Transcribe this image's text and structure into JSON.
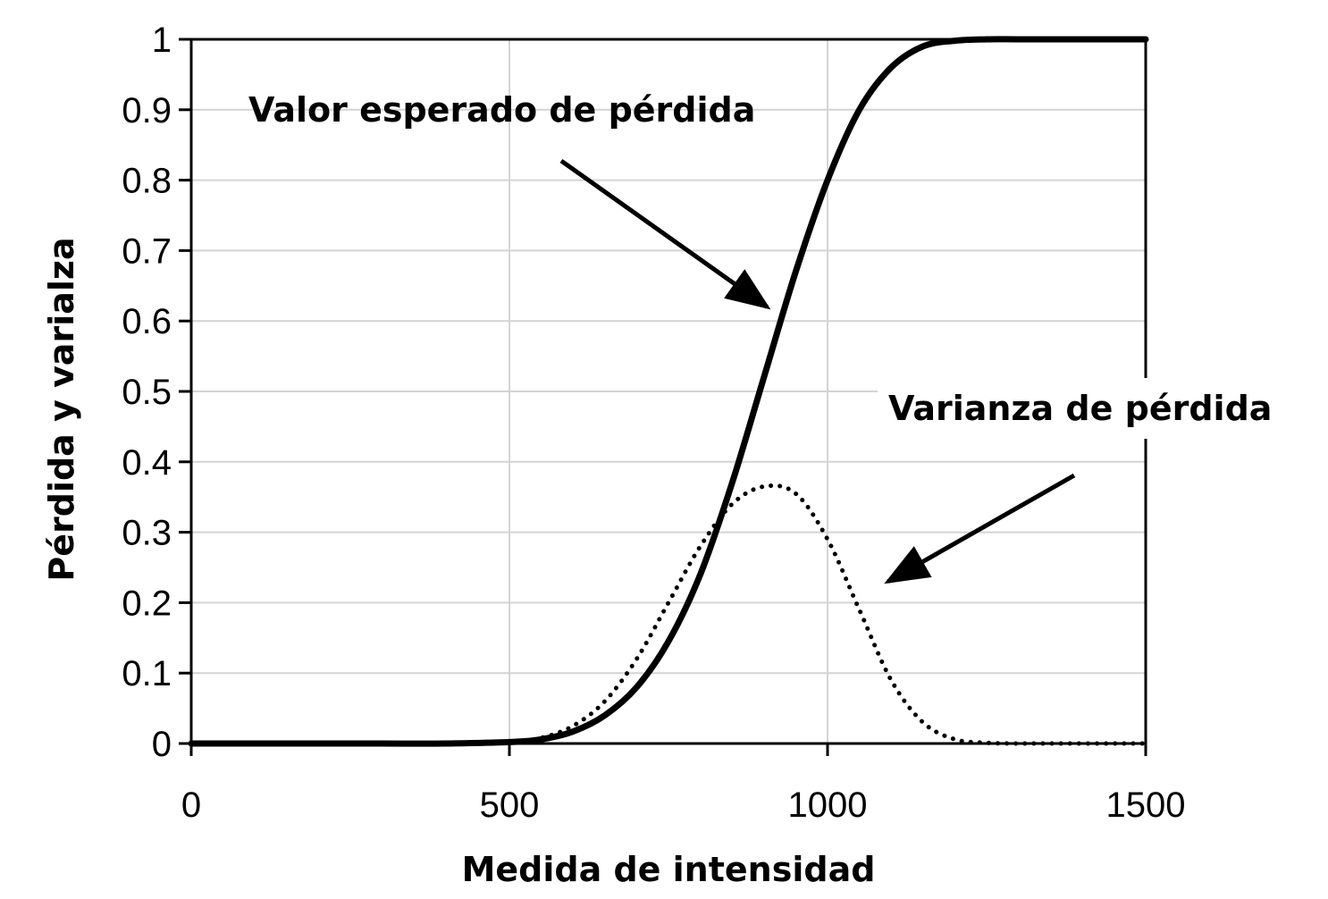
{
  "chart_data": {
    "type": "line",
    "title": "",
    "xlabel": "Medida de intensidad",
    "ylabel": "Pérdida y varialza",
    "xlim": [
      0,
      1500
    ],
    "ylim": [
      0,
      1
    ],
    "x_ticks": [
      "0",
      "500",
      "1000",
      "1500"
    ],
    "y_ticks": [
      "0",
      "0.1",
      "0.2",
      "0.3",
      "0.4",
      "0.5",
      "0.6",
      "0.7",
      "0.8",
      "0.9",
      "1"
    ],
    "grid": true,
    "legend": "none",
    "x": [
      0,
      100,
      200,
      300,
      400,
      500,
      550,
      600,
      650,
      700,
      750,
      800,
      850,
      900,
      950,
      1000,
      1050,
      1100,
      1150,
      1200,
      1250,
      1300,
      1350,
      1400,
      1450,
      1500
    ],
    "series": [
      {
        "style": "solid",
        "color": "#000000",
        "values": [
          0,
          0,
          0,
          0,
          0,
          0.002,
          0.006,
          0.017,
          0.04,
          0.08,
          0.145,
          0.24,
          0.37,
          0.52,
          0.67,
          0.8,
          0.9,
          0.96,
          0.99,
          0.998,
          1,
          1,
          1,
          1,
          1,
          1
        ]
      },
      {
        "style": "dotted",
        "color": "#000000",
        "values": [
          0,
          0,
          0,
          0,
          0,
          0.002,
          0.008,
          0.025,
          0.06,
          0.12,
          0.2,
          0.28,
          0.34,
          0.365,
          0.355,
          0.29,
          0.19,
          0.09,
          0.03,
          0.006,
          0.001,
          0,
          0,
          0,
          0,
          0
        ]
      }
    ],
    "annotations": [
      {
        "text": "Valor esperado de pérdida",
        "arrow_to": [
          905,
          0.62
        ]
      },
      {
        "text": "Varianza de pérdida",
        "arrow_to": [
          1095,
          0.23
        ]
      }
    ]
  }
}
